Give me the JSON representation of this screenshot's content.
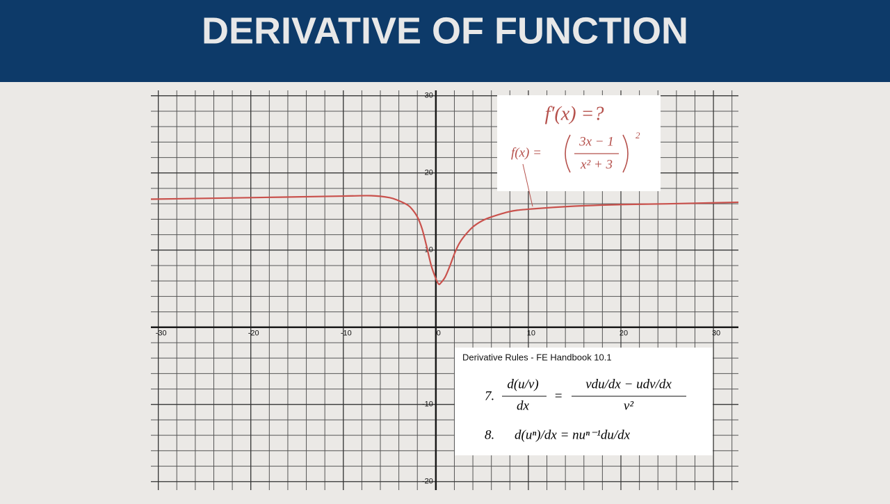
{
  "title": "DERIVATIVE OF FUNCTION",
  "chart_data": {
    "type": "line",
    "x": [
      -30.8,
      -20,
      -10,
      -7,
      -5,
      -4,
      -3,
      -2.5,
      -2,
      -1.5,
      -1,
      -0.5,
      0,
      0.3,
      0.5,
      1,
      1.5,
      2,
      2.5,
      3,
      4,
      5,
      6,
      8,
      10,
      15,
      20,
      25,
      32.7
    ],
    "series": [
      {
        "color": "#c9514c",
        "values": [
          16.6,
          16.8,
          17.0,
          17.05,
          16.8,
          16.4,
          15.8,
          15.2,
          14.3,
          12.8,
          10.5,
          8.0,
          6.3,
          5.6,
          5.7,
          6.5,
          7.9,
          9.5,
          10.8,
          11.7,
          13.0,
          13.8,
          14.3,
          15.0,
          15.3,
          15.7,
          15.9,
          16.0,
          16.2
        ]
      }
    ],
    "xlim": [
      -30.8,
      32.7
    ],
    "ylim": [
      -21.1,
      30.7
    ],
    "xticks": [
      -30,
      -20,
      -10,
      0,
      10,
      20,
      30
    ],
    "yticks": [
      -20,
      -10,
      10,
      20,
      30
    ],
    "grid": true
  },
  "formula_box": {
    "question": "f′(x) =?",
    "lhs": "f(x) =",
    "numerator": "3x − 1",
    "denominator": "x² + 3",
    "exponent": "2"
  },
  "rules_box": {
    "heading": "Derivative Rules - FE Handbook 10.1",
    "rules": [
      {
        "number": "7.",
        "numerator": "d(u/v)",
        "denominator": "dx",
        "equals": "=",
        "rhs_numerator": "vdu/dx − udv/dx",
        "rhs_denominator": "v²"
      },
      {
        "number": "8.",
        "formula": "d(uⁿ)/dx = nuⁿ⁻¹du/dx"
      }
    ]
  }
}
